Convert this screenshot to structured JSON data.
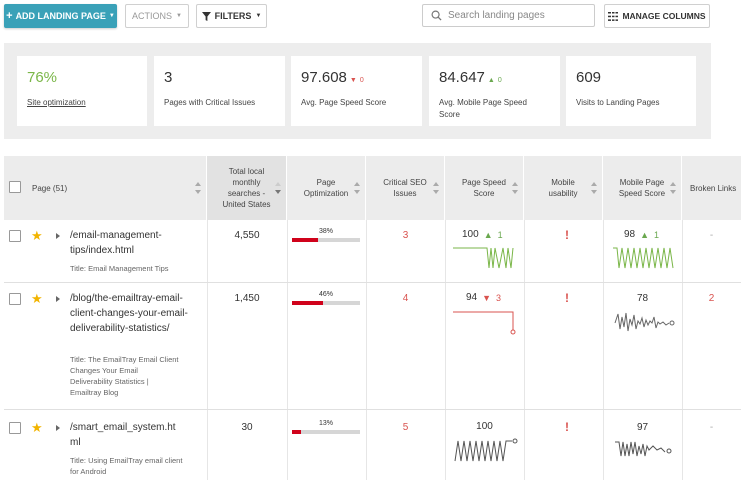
{
  "toolbar": {
    "add_label": "ADD LANDING PAGE",
    "actions_label": "ACTIONS",
    "filters_label": "FILTERS",
    "search_placeholder": "Search landing pages",
    "manage_columns_label": "MANAGE COLUMNS"
  },
  "stats": [
    {
      "value": "76%",
      "label": "Site optimization"
    },
    {
      "value": "3",
      "label": "Pages with Critical Issues"
    },
    {
      "value": "97.608",
      "delta": "0",
      "label": "Avg. Page Speed Score"
    },
    {
      "value": "84.647",
      "delta": "0",
      "label": "Avg. Mobile Page Speed Score"
    },
    {
      "value": "609",
      "label": "Visits to Landing Pages"
    }
  ],
  "table": {
    "headers": {
      "page": "Page (51)",
      "searches": "Total local monthly searches - United States",
      "optimization": "Page Optimization",
      "seo": "Critical SEO Issues",
      "speed": "Page Speed Score",
      "mobile_usability": "Mobile usability",
      "mobile_speed": "Mobile Page Speed Score",
      "broken": "Broken Links"
    },
    "title_prefix": "Title:",
    "rows": [
      {
        "url": "/email-management-tips/index.html",
        "title": "Email Management Tips",
        "searches": "4,550",
        "optimization": "38%",
        "seo_issues": "3",
        "speed": "100",
        "speed_delta": "1",
        "mobile_usability": "!",
        "mobile_speed": "98",
        "mobile_speed_delta": "1",
        "broken": "-"
      },
      {
        "url": "/blog/the-emailtray-email-client-changes-your-email-deliverability-statistics/",
        "title": "The EmailTray Email Client Changes Your Email Deliverability Statistics | Emailtray Blog",
        "searches": "1,450",
        "optimization": "46%",
        "seo_issues": "4",
        "speed": "94",
        "speed_delta": "3",
        "mobile_usability": "!",
        "mobile_speed": "78",
        "broken": "2"
      },
      {
        "url": "/smart_email_system.html",
        "title": "Using EmailTray email client for Android",
        "searches": "30",
        "optimization": "13%",
        "seo_issues": "5",
        "speed": "100",
        "mobile_usability": "!",
        "mobile_speed": "97",
        "broken": "-"
      }
    ]
  },
  "colors": {
    "primary": "#3aa1b8",
    "good": "#7ab648",
    "bad": "#d9534f",
    "optimization_bar": "#d0021b",
    "star": "#f2b400"
  }
}
